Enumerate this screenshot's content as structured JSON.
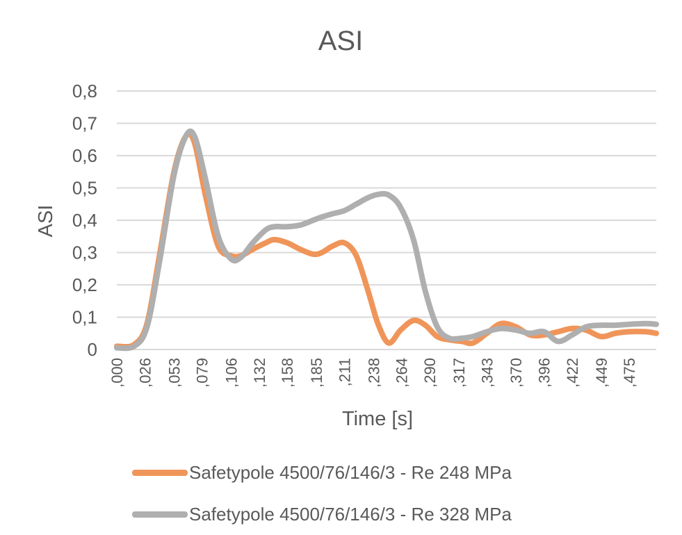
{
  "chart_data": {
    "type": "line",
    "title": "ASI",
    "xlabel": "Time [s]",
    "ylabel": "ASI",
    "ylim": [
      0,
      0.8
    ],
    "xlim": [
      0,
      0.5
    ],
    "y_ticks": [
      0,
      0.1,
      0.2,
      0.3,
      0.4,
      0.5,
      0.6,
      0.7,
      0.8
    ],
    "y_tick_labels": [
      "0",
      "0,1",
      "0,2",
      "0,3",
      "0,4",
      "0,5",
      "0,6",
      "0,7",
      "0,8"
    ],
    "x_ticks": [
      0.0,
      0.026,
      0.053,
      0.079,
      0.106,
      0.132,
      0.158,
      0.185,
      0.211,
      0.238,
      0.264,
      0.29,
      0.317,
      0.343,
      0.37,
      0.396,
      0.422,
      0.449,
      0.475
    ],
    "x_tick_labels": [
      ",000",
      ",026",
      ",053",
      ",079",
      ",106",
      ",132",
      ",158",
      ",185",
      ",211",
      ",238",
      ",264",
      ",290",
      ",317",
      ",343",
      ",370",
      ",396",
      ",422",
      ",449",
      ",475"
    ],
    "grid": true,
    "legend_position": "bottom",
    "series": [
      {
        "name": "Safetypole 4500/76/146/3 - Re 248 MPa",
        "color": "#F0955A",
        "x": [
          0.0,
          0.016,
          0.028,
          0.04,
          0.053,
          0.064,
          0.072,
          0.082,
          0.094,
          0.106,
          0.115,
          0.126,
          0.138,
          0.146,
          0.158,
          0.17,
          0.182,
          0.19,
          0.2,
          0.211,
          0.222,
          0.233,
          0.242,
          0.252,
          0.263,
          0.275,
          0.286,
          0.297,
          0.308,
          0.32,
          0.33,
          0.343,
          0.356,
          0.37,
          0.383,
          0.396,
          0.409,
          0.422,
          0.435,
          0.449,
          0.462,
          0.475,
          0.49,
          0.5
        ],
        "y": [
          0.01,
          0.015,
          0.08,
          0.3,
          0.55,
          0.66,
          0.64,
          0.48,
          0.32,
          0.29,
          0.29,
          0.31,
          0.33,
          0.34,
          0.33,
          0.31,
          0.295,
          0.3,
          0.32,
          0.33,
          0.29,
          0.18,
          0.08,
          0.02,
          0.06,
          0.09,
          0.075,
          0.04,
          0.03,
          0.025,
          0.02,
          0.05,
          0.08,
          0.07,
          0.045,
          0.045,
          0.055,
          0.065,
          0.06,
          0.04,
          0.05,
          0.055,
          0.055,
          0.05
        ]
      },
      {
        "name": "Safetypole 4500/76/146/3 - Re 328 MPa",
        "color": "#AFAFAF",
        "x": [
          0.0,
          0.016,
          0.028,
          0.04,
          0.053,
          0.064,
          0.072,
          0.082,
          0.094,
          0.106,
          0.115,
          0.126,
          0.138,
          0.146,
          0.158,
          0.17,
          0.182,
          0.19,
          0.2,
          0.211,
          0.222,
          0.233,
          0.242,
          0.252,
          0.263,
          0.275,
          0.286,
          0.297,
          0.308,
          0.32,
          0.33,
          0.343,
          0.356,
          0.37,
          0.383,
          0.396,
          0.409,
          0.422,
          0.435,
          0.449,
          0.462,
          0.475,
          0.49,
          0.5
        ],
        "y": [
          0.005,
          0.01,
          0.07,
          0.28,
          0.54,
          0.66,
          0.66,
          0.53,
          0.35,
          0.28,
          0.285,
          0.33,
          0.37,
          0.38,
          0.38,
          0.385,
          0.4,
          0.41,
          0.42,
          0.43,
          0.45,
          0.47,
          0.48,
          0.478,
          0.44,
          0.34,
          0.18,
          0.07,
          0.035,
          0.035,
          0.04,
          0.055,
          0.065,
          0.06,
          0.05,
          0.055,
          0.025,
          0.045,
          0.07,
          0.075,
          0.075,
          0.078,
          0.08,
          0.078
        ]
      }
    ]
  }
}
